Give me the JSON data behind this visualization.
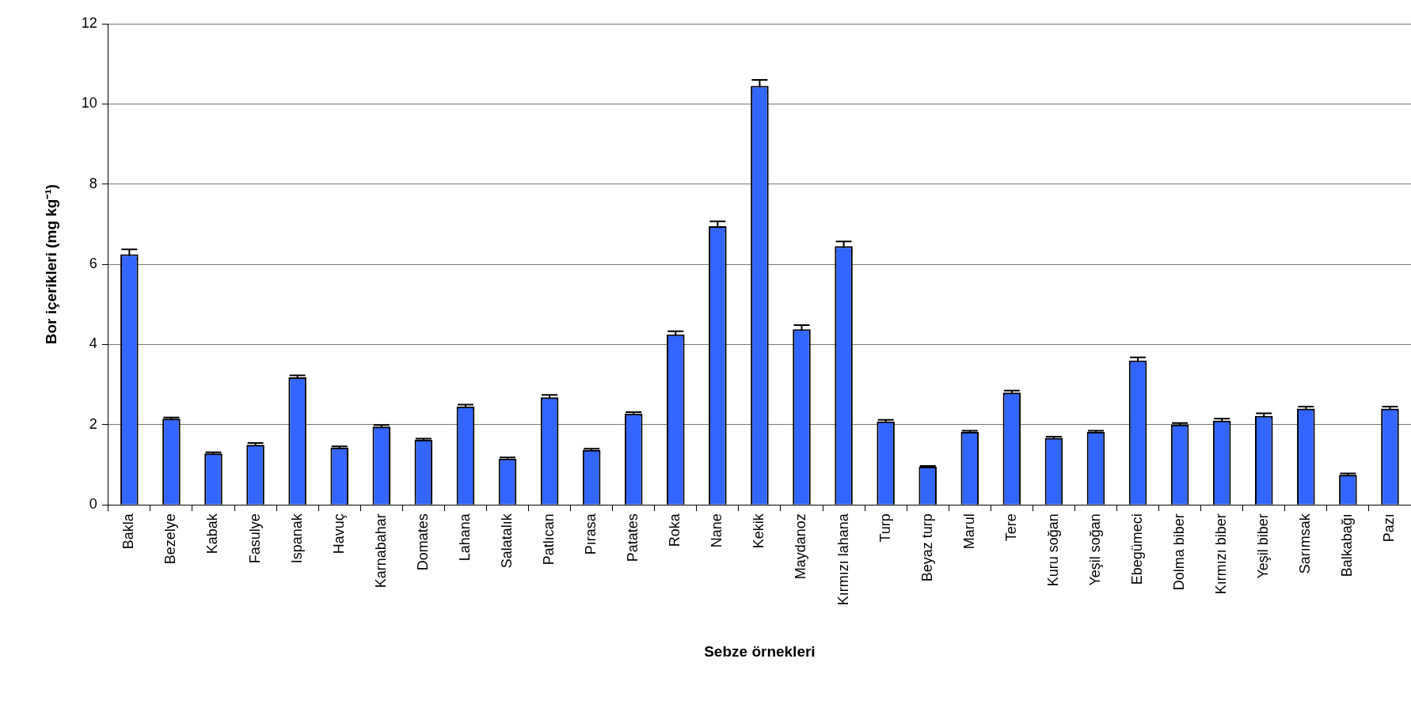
{
  "chart_data": {
    "type": "bar",
    "xlabel": "Sebze örnekleri",
    "ylabel": "Bor içerikleri (mg kg⁻¹)",
    "categories": [
      "Bakla",
      "Bezelye",
      "Kabak",
      "Fasulye",
      "Ispanak",
      "Havuç",
      "Karnabahar",
      "Domates",
      "Lahana",
      "Salatalık",
      "Patlıcan",
      "Pırasa",
      "Patates",
      "Roka",
      "Nane",
      "Kekik",
      "Maydanoz",
      "Kırmızı lahana",
      "Turp",
      "Beyaz turp",
      "Marul",
      "Tere",
      "Kuru soğan",
      "Yeşil soğan",
      "Ebegümeci",
      "Dolma biber",
      "Kırmızı biber",
      "Yeşil biber",
      "Sarımsak",
      "Balkabağı",
      "Pazı"
    ],
    "values": [
      6.25,
      2.15,
      1.28,
      1.5,
      3.18,
      1.43,
      1.95,
      1.62,
      2.45,
      1.15,
      2.68,
      1.37,
      2.27,
      4.25,
      6.95,
      10.45,
      4.38,
      6.45,
      2.08,
      0.95,
      1.82,
      2.8,
      1.67,
      1.82,
      3.6,
      2.0,
      2.1,
      2.22,
      2.4,
      0.75,
      2.4
    ],
    "errors": [
      0.12,
      0.03,
      0.03,
      0.04,
      0.05,
      0.03,
      0.04,
      0.03,
      0.05,
      0.03,
      0.06,
      0.03,
      0.04,
      0.08,
      0.12,
      0.15,
      0.1,
      0.12,
      0.04,
      0.02,
      0.03,
      0.05,
      0.03,
      0.03,
      0.08,
      0.04,
      0.05,
      0.06,
      0.05,
      0.03,
      0.05
    ],
    "color": "#3366ff",
    "ylim": [
      0,
      12
    ],
    "yticks": [
      0,
      2,
      4,
      6,
      8,
      10,
      12
    ],
    "grid": "y",
    "legend": false
  }
}
